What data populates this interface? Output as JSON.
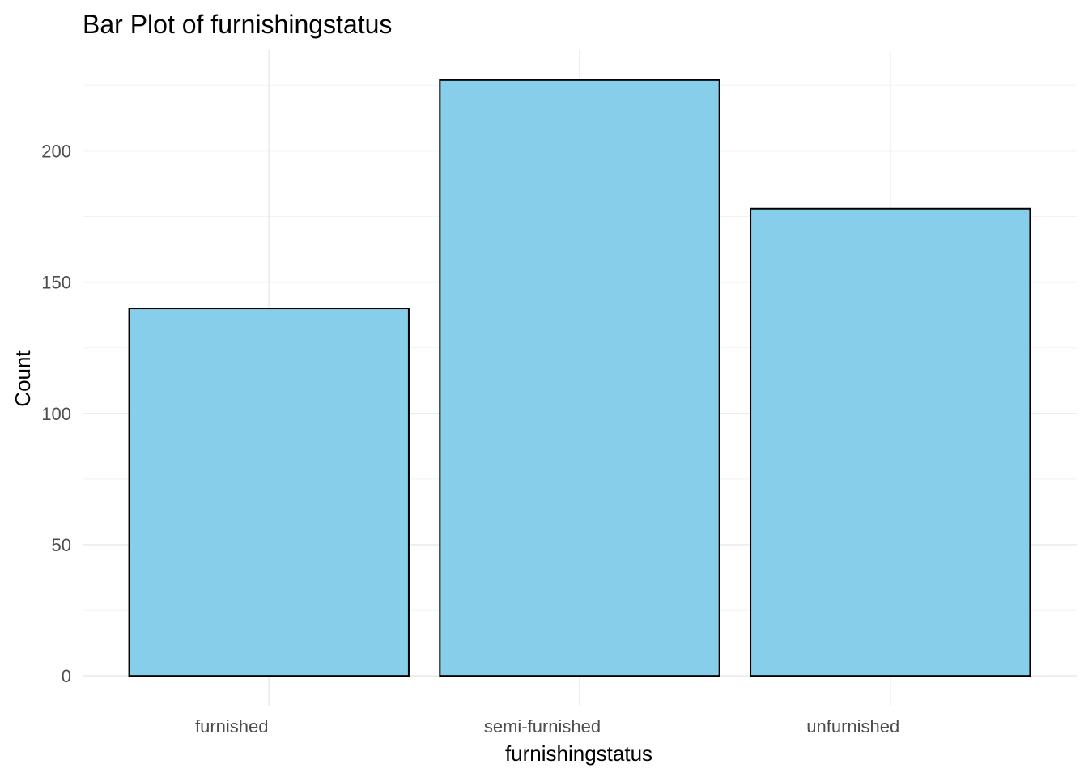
{
  "chart_data": {
    "type": "bar",
    "title": "Bar Plot of furnishingstatus",
    "xlabel": "furnishingstatus",
    "ylabel": "Count",
    "categories": [
      "furnished",
      "semi-furnished",
      "unfurnished"
    ],
    "values": [
      140,
      227,
      178
    ],
    "yticks": [
      0,
      50,
      100,
      150,
      200
    ],
    "ylim": [
      -11.35,
      238.35
    ],
    "bar_color": "#87CEEB",
    "bar_outline_color": "#000000",
    "grid": true,
    "legend": "none"
  }
}
